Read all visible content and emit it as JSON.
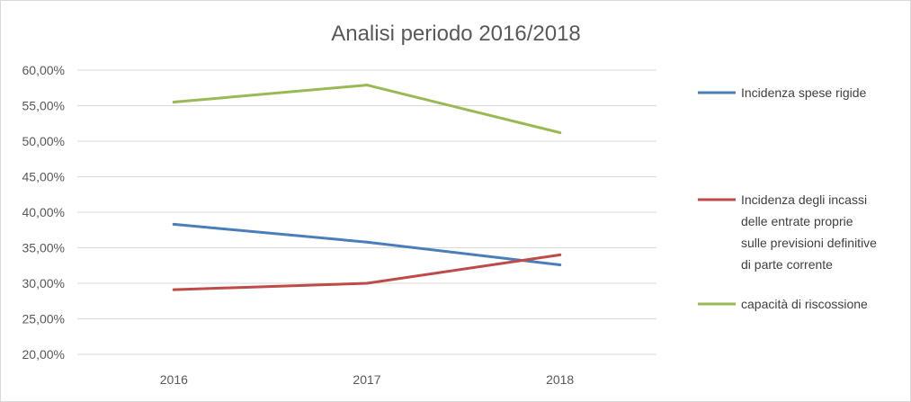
{
  "chart_data": {
    "type": "line",
    "title": "Analisi periodo  2016/2018",
    "categories": [
      "2016",
      "2017",
      "2018"
    ],
    "ylim": [
      0.2,
      0.6
    ],
    "yticks": [
      "60,00%",
      "55,00%",
      "50,00%",
      "45,00%",
      "40,00%",
      "35,00%",
      "30,00%",
      "25,00%",
      "20,00%"
    ],
    "yticks_values": [
      0.6,
      0.55,
      0.5,
      0.45,
      0.4,
      0.35,
      0.3,
      0.25,
      0.2
    ],
    "grid": true,
    "legend_position": "right",
    "series": [
      {
        "name": "Incidenza spese rigide",
        "name_lines": [
          "Incidenza spese rigide"
        ],
        "color": "#4a7ebb",
        "values": [
          0.383,
          0.358,
          0.326
        ]
      },
      {
        "name": "Incidenza degli incassi delle entrate proprie sulle previsioni definitive di parte corrente",
        "name_lines": [
          "Incidenza degli incassi",
          "delle entrate proprie",
          "sulle previsioni definitive",
          "di parte corrente"
        ],
        "color": "#be4b48",
        "values": [
          0.291,
          0.3,
          0.34
        ]
      },
      {
        "name": "capacità di riscossione",
        "name_lines": [
          "capacità di riscossione"
        ],
        "color": "#98b954",
        "values": [
          0.555,
          0.579,
          0.512
        ]
      }
    ]
  }
}
